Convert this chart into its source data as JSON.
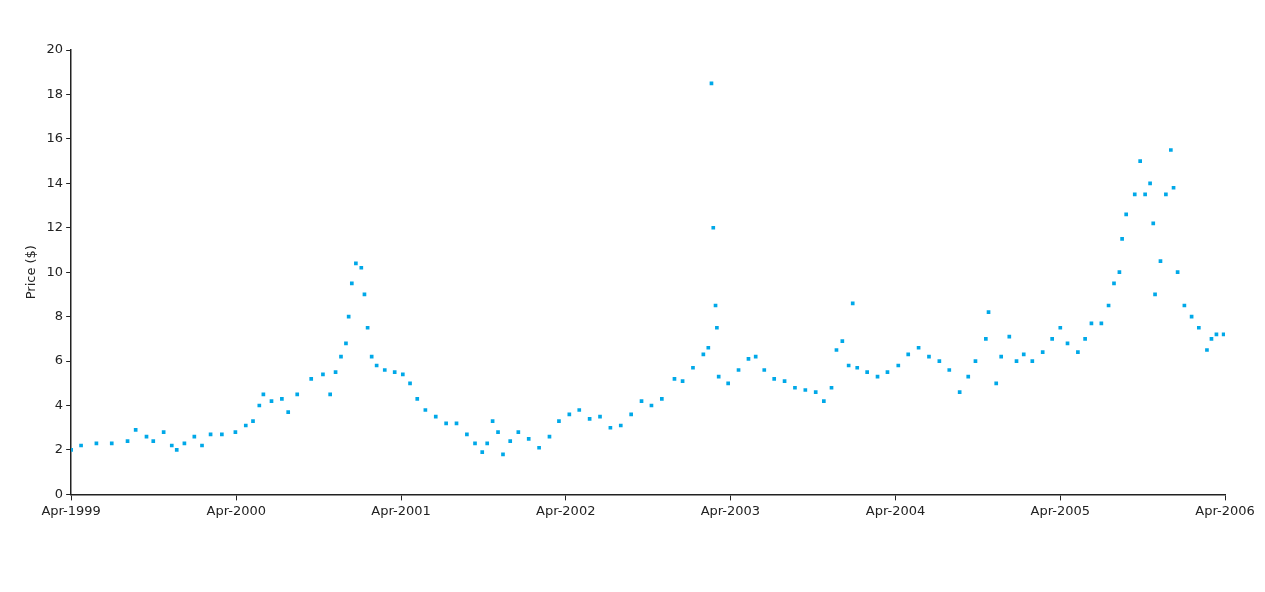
{
  "chart_data": {
    "type": "scatter",
    "ylabel": "Price ($)",
    "marker": "square",
    "grid": false,
    "legend": false,
    "xlim": [
      "1999-04-01",
      "2006-04-01"
    ],
    "xticks": [
      {
        "value": "1999-04-01",
        "label": "Apr-1999"
      },
      {
        "value": "2000-04-01",
        "label": "Apr-2000"
      },
      {
        "value": "2001-04-01",
        "label": "Apr-2001"
      },
      {
        "value": "2002-04-01",
        "label": "Apr-2002"
      },
      {
        "value": "2003-04-01",
        "label": "Apr-2003"
      },
      {
        "value": "2004-04-01",
        "label": "Apr-2004"
      },
      {
        "value": "2005-04-01",
        "label": "Apr-2005"
      },
      {
        "value": "2006-04-01",
        "label": "Apr-2006"
      }
    ],
    "ylim": [
      0,
      20
    ],
    "yticks": [
      0,
      2,
      4,
      6,
      8,
      10,
      12,
      14,
      16,
      18,
      20
    ],
    "series": [
      {
        "color": "#00a8e8",
        "x": [
          "1999-04-01",
          "1999-04-23",
          "1999-05-27",
          "1999-06-30",
          "1999-08-04",
          "1999-08-22",
          "1999-09-15",
          "1999-09-30",
          "1999-10-23",
          "1999-11-10",
          "1999-11-21",
          "1999-12-08",
          "1999-12-30",
          "2000-01-16",
          "2000-02-04",
          "2000-02-29",
          "2000-03-30",
          "2000-04-22",
          "2000-05-08",
          "2000-05-22",
          "2000-05-31",
          "2000-06-18",
          "2000-07-11",
          "2000-07-25",
          "2000-08-14",
          "2000-09-14",
          "2000-10-10",
          "2000-10-26",
          "2000-11-07",
          "2000-11-19",
          "2000-11-30",
          "2000-12-06",
          "2000-12-13",
          "2000-12-22",
          "2001-01-03",
          "2001-01-10",
          "2001-01-17",
          "2001-01-26",
          "2001-02-06",
          "2001-02-24",
          "2001-03-18",
          "2001-04-05",
          "2001-04-21",
          "2001-05-07",
          "2001-05-25",
          "2001-06-17",
          "2001-07-10",
          "2001-08-02",
          "2001-08-25",
          "2001-09-12",
          "2001-09-28",
          "2001-10-09",
          "2001-10-21",
          "2001-11-02",
          "2001-11-13",
          "2001-11-29",
          "2001-12-17",
          "2002-01-09",
          "2002-02-01",
          "2002-02-24",
          "2002-03-17",
          "2002-04-09",
          "2002-05-01",
          "2002-05-24",
          "2002-06-16",
          "2002-07-09",
          "2002-08-01",
          "2002-08-24",
          "2002-09-16",
          "2002-10-08",
          "2002-10-31",
          "2002-11-28",
          "2002-12-16",
          "2003-01-08",
          "2003-01-31",
          "2003-02-11",
          "2003-02-18",
          "2003-02-22",
          "2003-02-27",
          "2003-03-02",
          "2003-03-06",
          "2003-03-27",
          "2003-04-19",
          "2003-05-11",
          "2003-05-27",
          "2003-06-15",
          "2003-07-07",
          "2003-07-30",
          "2003-08-22",
          "2003-09-14",
          "2003-10-07",
          "2003-10-25",
          "2003-11-11",
          "2003-11-22",
          "2003-12-05",
          "2003-12-19",
          "2003-12-28",
          "2004-01-07",
          "2004-01-29",
          "2004-02-21",
          "2004-03-14",
          "2004-04-07",
          "2004-04-29",
          "2004-05-22",
          "2004-06-14",
          "2004-07-07",
          "2004-07-29",
          "2004-08-21",
          "2004-09-09",
          "2004-09-25",
          "2004-10-18",
          "2004-10-24",
          "2004-11-10",
          "2004-11-21",
          "2004-12-09",
          "2004-12-25",
          "2005-01-10",
          "2005-01-29",
          "2005-02-21",
          "2005-03-14",
          "2005-04-01",
          "2005-04-17",
          "2005-05-10",
          "2005-05-26",
          "2005-06-09",
          "2005-07-01",
          "2005-07-17",
          "2005-07-29",
          "2005-08-10",
          "2005-08-16",
          "2005-08-25",
          "2005-09-13",
          "2005-09-25",
          "2005-10-06",
          "2005-10-17",
          "2005-10-24",
          "2005-10-28",
          "2005-11-09",
          "2005-11-21",
          "2005-12-02",
          "2005-12-08",
          "2005-12-17",
          "2006-01-01",
          "2006-01-17",
          "2006-02-02",
          "2006-02-20",
          "2006-03-02",
          "2006-03-13",
          "2006-03-29"
        ],
        "values": [
          2.0,
          2.2,
          2.3,
          2.3,
          2.4,
          2.9,
          2.6,
          2.4,
          2.8,
          2.2,
          2.0,
          2.3,
          2.6,
          2.2,
          2.7,
          2.7,
          2.8,
          3.1,
          3.3,
          4.0,
          4.5,
          4.2,
          4.3,
          3.7,
          4.5,
          5.2,
          5.4,
          4.5,
          5.5,
          6.2,
          6.8,
          8.0,
          9.5,
          10.4,
          10.2,
          9.0,
          7.5,
          6.2,
          5.8,
          5.6,
          5.5,
          5.4,
          5.0,
          4.3,
          3.8,
          3.5,
          3.2,
          3.2,
          2.7,
          2.3,
          1.9,
          2.3,
          3.3,
          2.8,
          1.8,
          2.4,
          2.8,
          2.5,
          2.1,
          2.6,
          3.3,
          3.6,
          3.8,
          3.4,
          3.5,
          3.0,
          3.1,
          3.6,
          4.2,
          4.0,
          4.3,
          5.2,
          5.1,
          5.7,
          6.3,
          6.6,
          18.5,
          12.0,
          8.5,
          7.5,
          5.3,
          5.0,
          5.6,
          6.1,
          6.2,
          5.6,
          5.2,
          5.1,
          4.8,
          4.7,
          4.6,
          4.2,
          4.8,
          6.5,
          6.9,
          5.8,
          8.6,
          5.7,
          5.5,
          5.3,
          5.5,
          5.8,
          6.3,
          6.6,
          6.2,
          6.0,
          5.6,
          4.6,
          5.3,
          6.0,
          7.0,
          8.2,
          5.0,
          6.2,
          7.1,
          6.0,
          6.3,
          6.0,
          6.4,
          7.0,
          7.5,
          6.8,
          6.4,
          7.0,
          7.7,
          7.7,
          8.5,
          9.5,
          10.0,
          11.5,
          12.6,
          13.5,
          15.0,
          13.5,
          14.0,
          12.2,
          9.0,
          10.5,
          13.5,
          15.5,
          13.8,
          10.0,
          8.5,
          8.0,
          7.5,
          6.5,
          7.0,
          7.2,
          7.2
        ]
      }
    ]
  }
}
